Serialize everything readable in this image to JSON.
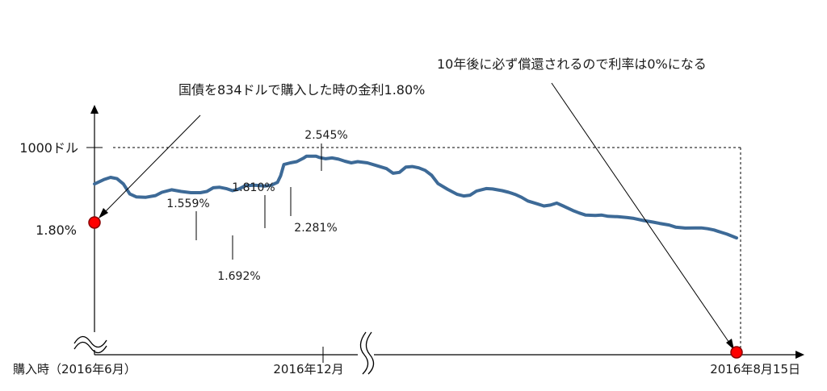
{
  "chart_data": {
    "type": "line",
    "y_labels": {
      "top": "1000ドル",
      "mid": "1.80%"
    },
    "x_labels": {
      "start": "購入時（2016年6月）",
      "mid": "2016年12月",
      "end": "2016年8月15日"
    },
    "annotations": {
      "purchase": "国債を834ドルで購入した時の金利1.80%",
      "maturity": "10年後に必ず償還されるので利率は0%になる"
    },
    "rate_labels": [
      "1.559%",
      "1.692%",
      "1.810%",
      "2.281%",
      "2.545%"
    ],
    "series": [
      {
        "color": "#3d6a97",
        "values": [
          [
            0,
            0.56
          ],
          [
            0.015,
            0.615
          ],
          [
            0.025,
            0.64
          ],
          [
            0.035,
            0.625
          ],
          [
            0.045,
            0.56
          ],
          [
            0.055,
            0.44
          ],
          [
            0.065,
            0.405
          ],
          [
            0.08,
            0.4
          ],
          [
            0.095,
            0.42
          ],
          [
            0.105,
            0.46
          ],
          [
            0.12,
            0.49
          ],
          [
            0.135,
            0.47
          ],
          [
            0.15,
            0.455
          ],
          [
            0.165,
            0.455
          ],
          [
            0.175,
            0.47
          ],
          [
            0.185,
            0.515
          ],
          [
            0.195,
            0.52
          ],
          [
            0.205,
            0.505
          ],
          [
            0.215,
            0.48
          ],
          [
            0.225,
            0.5
          ],
          [
            0.235,
            0.54
          ],
          [
            0.25,
            0.545
          ],
          [
            0.265,
            0.535
          ],
          [
            0.275,
            0.545
          ],
          [
            0.285,
            0.58
          ],
          [
            0.29,
            0.66
          ],
          [
            0.295,
            0.795
          ],
          [
            0.305,
            0.815
          ],
          [
            0.315,
            0.83
          ],
          [
            0.325,
            0.87
          ],
          [
            0.33,
            0.895
          ],
          [
            0.345,
            0.895
          ],
          [
            0.35,
            0.88
          ],
          [
            0.36,
            0.865
          ],
          [
            0.37,
            0.875
          ],
          [
            0.38,
            0.86
          ],
          [
            0.39,
            0.835
          ],
          [
            0.4,
            0.815
          ],
          [
            0.41,
            0.83
          ],
          [
            0.425,
            0.815
          ],
          [
            0.44,
            0.78
          ],
          [
            0.455,
            0.745
          ],
          [
            0.465,
            0.69
          ],
          [
            0.475,
            0.7
          ],
          [
            0.485,
            0.765
          ],
          [
            0.495,
            0.77
          ],
          [
            0.505,
            0.755
          ],
          [
            0.515,
            0.725
          ],
          [
            0.525,
            0.665
          ],
          [
            0.535,
            0.565
          ],
          [
            0.55,
            0.495
          ],
          [
            0.565,
            0.435
          ],
          [
            0.575,
            0.415
          ],
          [
            0.585,
            0.425
          ],
          [
            0.595,
            0.475
          ],
          [
            0.61,
            0.505
          ],
          [
            0.62,
            0.5
          ],
          [
            0.635,
            0.48
          ],
          [
            0.645,
            0.46
          ],
          [
            0.655,
            0.435
          ],
          [
            0.665,
            0.4
          ],
          [
            0.675,
            0.355
          ],
          [
            0.69,
            0.32
          ],
          [
            0.7,
            0.295
          ],
          [
            0.71,
            0.305
          ],
          [
            0.72,
            0.33
          ],
          [
            0.73,
            0.295
          ],
          [
            0.745,
            0.24
          ],
          [
            0.755,
            0.21
          ],
          [
            0.765,
            0.185
          ],
          [
            0.78,
            0.18
          ],
          [
            0.79,
            0.185
          ],
          [
            0.8,
            0.17
          ],
          [
            0.815,
            0.165
          ],
          [
            0.83,
            0.155
          ],
          [
            0.84,
            0.145
          ],
          [
            0.855,
            0.12
          ],
          [
            0.87,
            0.1
          ],
          [
            0.88,
            0.085
          ],
          [
            0.895,
            0.065
          ],
          [
            0.905,
            0.04
          ],
          [
            0.92,
            0.028
          ],
          [
            0.935,
            0.03
          ],
          [
            0.945,
            0.03
          ],
          [
            0.955,
            0.02
          ],
          [
            0.965,
            0.005
          ],
          [
            0.975,
            -0.02
          ],
          [
            0.985,
            -0.045
          ],
          [
            1.0,
            -0.09
          ]
        ]
      }
    ]
  }
}
